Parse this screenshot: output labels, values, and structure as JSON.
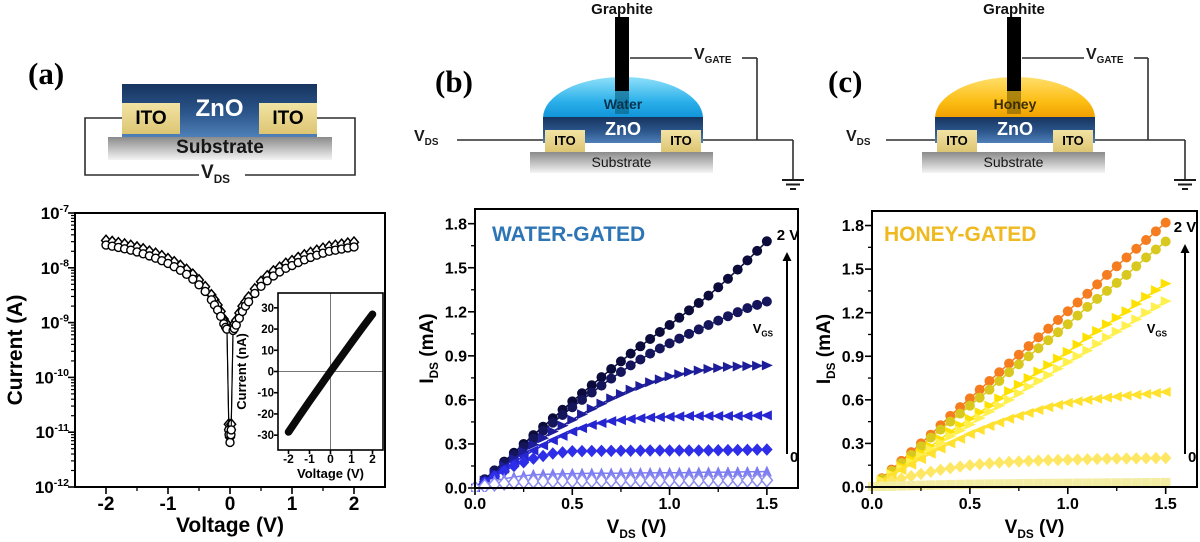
{
  "panels": {
    "a": {
      "label": "(a)",
      "schematic": {
        "zno": "ZnO",
        "ito_left": "ITO",
        "ito_right": "ITO",
        "substrate": "Substrate",
        "vds": "V_{DS}"
      }
    },
    "b": {
      "label": "(b)",
      "schematic": {
        "graphite": "Graphite",
        "liquid": "Water",
        "zno": "ZnO",
        "ito_left": "ITO",
        "ito_right": "ITO",
        "substrate": "Substrate",
        "vds": "V_{DS}",
        "vgate": "V_{GATE}"
      }
    },
    "c": {
      "label": "(c)",
      "schematic": {
        "graphite": "Graphite",
        "liquid": "Honey",
        "zno": "ZnO",
        "ito_left": "ITO",
        "ito_right": "ITO",
        "substrate": "Substrate",
        "vds": "V_{DS}",
        "vgate": "V_{GATE}"
      }
    }
  },
  "colors": {
    "water_title": "#2e75b6",
    "honey_title": "#efb920",
    "water_drop_top": "#8ee0fa",
    "water_drop": "#2cb0ea",
    "water_drop_deep": "#0f93d8",
    "honey_drop_top": "#ffdf6b",
    "honey_drop": "#fcbd13",
    "honey_drop_deep": "#ee9f00",
    "ito_top": "#f2e3a4",
    "ito_bottom": "#ddc572",
    "zno_top": "#16345f",
    "zno_mid": "#2c568c",
    "zno_bottom": "#4f80b8",
    "substrate_top": "#8a8a8a",
    "substrate_bottom": "#f4f4f4",
    "wire": "#2f2f2f"
  },
  "chart_data": [
    {
      "id": "iv_curve",
      "type": "scatter",
      "xlabel": "Voltage (V)",
      "ylabel": "Current (A)",
      "yscale": "log",
      "xlim": [
        -2.5,
        2.5
      ],
      "ylim_log": [
        -12,
        -7
      ],
      "xticks": {
        "values": [
          -2,
          -1,
          0,
          1,
          2
        ],
        "labels": [
          "-2",
          "-1",
          "0",
          "1",
          "2"
        ]
      },
      "yticks": {
        "values": [
          1e-07,
          1e-08,
          1e-09,
          1e-10,
          1e-11,
          1e-12
        ],
        "labels": [
          "10^{-7}",
          "10^{-8}",
          "10^{-9}",
          "10^{-10}",
          "10^{-11}",
          "10^{-12}"
        ]
      },
      "series": [
        {
          "name": "sweep-diamonds",
          "marker": "diamond-open",
          "color": "#000000",
          "points": [
            [
              -2,
              3.15e-08
            ],
            [
              -1.9,
              3e-08
            ],
            [
              -1.8,
              2.85e-08
            ],
            [
              -1.7,
              2.7e-08
            ],
            [
              -1.6,
              2.55e-08
            ],
            [
              -1.5,
              2.38e-08
            ],
            [
              -1.4,
              2.2e-08
            ],
            [
              -1.3,
              2e-08
            ],
            [
              -1.2,
              1.83e-08
            ],
            [
              -1.1,
              1.65e-08
            ],
            [
              -1,
              1.46e-08
            ],
            [
              -0.9,
              1.28e-08
            ],
            [
              -0.8,
              1.1e-08
            ],
            [
              -0.7,
              9.3e-09
            ],
            [
              -0.6,
              7.6e-09
            ],
            [
              -0.5,
              6e-09
            ],
            [
              -0.4,
              4.5e-09
            ],
            [
              -0.3,
              3.2e-09
            ],
            [
              -0.25,
              2.6e-09
            ],
            [
              -0.2,
              2.1e-09
            ],
            [
              -0.15,
              1.6e-09
            ],
            [
              -0.1,
              1.16e-09
            ],
            [
              -0.07,
              1e-09
            ],
            [
              -0.05,
              9.3e-10
            ],
            [
              -0.02,
              1.4e-11
            ],
            [
              -0.015,
              1.1e-11
            ],
            [
              0,
              8e-12
            ],
            [
              0.015,
              1.1e-11
            ],
            [
              0.02,
              1.4e-11
            ],
            [
              0.05,
              8.8e-10
            ],
            [
              0.07,
              9.5e-10
            ],
            [
              0.1,
              1.1e-09
            ],
            [
              0.15,
              1.5e-09
            ],
            [
              0.2,
              2e-09
            ],
            [
              0.25,
              2.4e-09
            ],
            [
              0.3,
              2.9e-09
            ],
            [
              0.4,
              4.1e-09
            ],
            [
              0.5,
              5.6e-09
            ],
            [
              0.6,
              7.1e-09
            ],
            [
              0.7,
              8.7e-09
            ],
            [
              0.8,
              1.02e-08
            ],
            [
              0.9,
              1.2e-08
            ],
            [
              1,
              1.34e-08
            ],
            [
              1.1,
              1.53e-08
            ],
            [
              1.2,
              1.71e-08
            ],
            [
              1.3,
              1.89e-08
            ],
            [
              1.4,
              2.07e-08
            ],
            [
              1.5,
              2.26e-08
            ],
            [
              1.6,
              2.44e-08
            ],
            [
              1.7,
              2.56e-08
            ],
            [
              1.8,
              2.68e-08
            ],
            [
              1.9,
              2.8e-08
            ],
            [
              2,
              2.93e-08
            ]
          ]
        },
        {
          "name": "sweep-circles",
          "marker": "circle-open",
          "color": "#000000",
          "points": [
            [
              -2,
              2.6e-08
            ],
            [
              -1.9,
              2.48e-08
            ],
            [
              -1.8,
              2.35e-08
            ],
            [
              -1.7,
              2.22e-08
            ],
            [
              -1.6,
              2.1e-08
            ],
            [
              -1.5,
              1.95e-08
            ],
            [
              -1.4,
              1.8e-08
            ],
            [
              -1.3,
              1.65e-08
            ],
            [
              -1.2,
              1.5e-08
            ],
            [
              -1.1,
              1.35e-08
            ],
            [
              -1,
              1.2e-08
            ],
            [
              -0.9,
              1.05e-08
            ],
            [
              -0.8,
              9e-09
            ],
            [
              -0.7,
              7.6e-09
            ],
            [
              -0.6,
              6.2e-09
            ],
            [
              -0.5,
              4.9e-09
            ],
            [
              -0.4,
              3.7e-09
            ],
            [
              -0.3,
              2.6e-09
            ],
            [
              -0.25,
              2.1e-09
            ],
            [
              -0.2,
              1.7e-09
            ],
            [
              -0.15,
              1.3e-09
            ],
            [
              -0.1,
              9.5e-10
            ],
            [
              -0.07,
              8.2e-10
            ],
            [
              -0.05,
              7.6e-10
            ],
            [
              -0.02,
              1.1e-11
            ],
            [
              -0.015,
              9e-12
            ],
            [
              0,
              6.5e-12
            ],
            [
              0.015,
              9e-12
            ],
            [
              0.02,
              1.1e-11
            ],
            [
              0.05,
              7.2e-10
            ],
            [
              0.07,
              7.8e-10
            ],
            [
              0.1,
              9e-10
            ],
            [
              0.15,
              1.2e-09
            ],
            [
              0.2,
              1.6e-09
            ],
            [
              0.25,
              2e-09
            ],
            [
              0.3,
              2.4e-09
            ],
            [
              0.4,
              3.4e-09
            ],
            [
              0.5,
              4.6e-09
            ],
            [
              0.6,
              5.8e-09
            ],
            [
              0.7,
              7.1e-09
            ],
            [
              0.8,
              8.4e-09
            ],
            [
              0.9,
              9.8e-09
            ],
            [
              1,
              1.1e-08
            ],
            [
              1.1,
              1.25e-08
            ],
            [
              1.2,
              1.4e-08
            ],
            [
              1.3,
              1.55e-08
            ],
            [
              1.4,
              1.7e-08
            ],
            [
              1.5,
              1.85e-08
            ],
            [
              1.6,
              2e-08
            ],
            [
              1.7,
              2.1e-08
            ],
            [
              1.8,
              2.2e-08
            ],
            [
              1.9,
              2.3e-08
            ],
            [
              2,
              2.4e-08
            ]
          ]
        }
      ]
    },
    {
      "id": "iv_inset",
      "type": "line",
      "xlabel": "Voltage (V)",
      "ylabel": "Current (nA)",
      "xlim": [
        -2.5,
        2.5
      ],
      "ylim": [
        -37,
        37
      ],
      "xticks": {
        "values": [
          -2,
          -1,
          0,
          1,
          2
        ],
        "labels": [
          "-2",
          "-1",
          "0",
          "1",
          "2"
        ]
      },
      "yticks": {
        "values": [
          30,
          20,
          10,
          0,
          -10,
          -20,
          -30
        ],
        "labels": [
          "30",
          "20",
          "10",
          "0",
          "-10",
          "-20",
          "-30"
        ]
      },
      "series": [
        {
          "name": "linear-iv",
          "marker": "none",
          "color": "#0a0a0a",
          "lw": 7.5,
          "points": [
            [
              -2,
              -28.5
            ],
            [
              -1.5,
              -21.2
            ],
            [
              -1,
              -14
            ],
            [
              -0.5,
              -7
            ],
            [
              0,
              0
            ],
            [
              0.5,
              6.8
            ],
            [
              1,
              13.6
            ],
            [
              1.5,
              20.4
            ],
            [
              2,
              27
            ]
          ]
        }
      ]
    },
    {
      "id": "water_output",
      "type": "line",
      "title": "WATER-GATED",
      "title_color": "#2e75b6",
      "xlabel": "V_{DS} (V)",
      "ylabel": "I_{DS} (mA)",
      "xlim": [
        0,
        1.66
      ],
      "ylim": [
        0,
        1.9
      ],
      "xticks": {
        "values": [
          0,
          0.5,
          1,
          1.5
        ],
        "labels": [
          "0.0",
          "0.5",
          "1.0",
          "1.5"
        ]
      },
      "yticks": {
        "values": [
          0,
          0.3,
          0.6,
          0.9,
          1.2,
          1.5,
          1.8
        ],
        "labels": [
          "0.0",
          "0.3",
          "0.6",
          "0.9",
          "1.2",
          "1.5",
          "1.8"
        ]
      },
      "x": [
        0,
        0.1,
        0.2,
        0.3,
        0.4,
        0.5,
        0.6,
        0.7,
        0.8,
        0.9,
        1.0,
        1.1,
        1.2,
        1.3,
        1.4,
        1.5
      ],
      "annotations": {
        "top_label": "2 V",
        "bottom_label": "0",
        "arrow_label": "V_{GS}"
      },
      "series": [
        {
          "name": "vgs-step-7-2V",
          "marker": "circle",
          "color": "#0b0b3c",
          "values": [
            0,
            0.12,
            0.24,
            0.36,
            0.475,
            0.59,
            0.7,
            0.81,
            0.915,
            1.015,
            1.11,
            1.21,
            1.31,
            1.425,
            1.55,
            1.68
          ]
        },
        {
          "name": "vgs-step-6",
          "marker": "circle",
          "color": "#15155c",
          "values": [
            0,
            0.115,
            0.225,
            0.335,
            0.445,
            0.55,
            0.65,
            0.745,
            0.835,
            0.915,
            0.985,
            1.05,
            1.11,
            1.17,
            1.225,
            1.27
          ]
        },
        {
          "name": "vgs-step-5",
          "marker": "tri-right",
          "color": "#1d1d99",
          "values": [
            0,
            0.1,
            0.2,
            0.295,
            0.385,
            0.465,
            0.54,
            0.61,
            0.67,
            0.72,
            0.76,
            0.79,
            0.81,
            0.825,
            0.83,
            0.835
          ]
        },
        {
          "name": "vgs-step-4",
          "marker": "tri-left",
          "color": "#2525d1",
          "values": [
            0,
            0.09,
            0.175,
            0.255,
            0.325,
            0.385,
            0.43,
            0.455,
            0.47,
            0.48,
            0.485,
            0.49,
            0.49,
            0.49,
            0.49,
            0.495
          ]
        },
        {
          "name": "vgs-step-3",
          "marker": "diamond",
          "color": "#2e2ee8",
          "values": [
            0,
            0.08,
            0.15,
            0.2,
            0.235,
            0.25,
            0.252,
            0.253,
            0.254,
            0.255,
            0.255,
            0.255,
            0.256,
            0.258,
            0.26,
            0.262
          ]
        },
        {
          "name": "vgs-step-2",
          "marker": "tri-up",
          "color": "#7d7df2",
          "values": [
            0,
            0.05,
            0.075,
            0.09,
            0.095,
            0.098,
            0.1,
            0.1,
            0.102,
            0.103,
            0.104,
            0.105,
            0.107,
            0.108,
            0.11,
            0.112
          ]
        },
        {
          "name": "vgs-step-1-0V",
          "marker": "diamond-open",
          "color": "#8c8cf0",
          "values": [
            0,
            0.025,
            0.038,
            0.044,
            0.047,
            0.048,
            0.049,
            0.05,
            0.05,
            0.05,
            0.05,
            0.05,
            0.051,
            0.051,
            0.052,
            0.053
          ]
        }
      ]
    },
    {
      "id": "honey_output",
      "type": "line",
      "title": "HONEY-GATED",
      "title_color": "#efb920",
      "xlabel": "V_{DS} (V)",
      "ylabel": "I_{DS} (mA)",
      "xlim": [
        0,
        1.66
      ],
      "ylim": [
        0,
        1.9
      ],
      "xticks": {
        "values": [
          0,
          0.5,
          1,
          1.5
        ],
        "labels": [
          "0.0",
          "0.5",
          "1.0",
          "1.5"
        ]
      },
      "yticks": {
        "values": [
          0,
          0.3,
          0.6,
          0.9,
          1.2,
          1.5,
          1.8
        ],
        "labels": [
          "0.0",
          "0.3",
          "0.6",
          "0.9",
          "1.2",
          "1.5",
          "1.8"
        ]
      },
      "x": [
        0,
        0.1,
        0.2,
        0.3,
        0.4,
        0.5,
        0.6,
        0.7,
        0.8,
        0.9,
        1.0,
        1.1,
        1.2,
        1.3,
        1.4,
        1.5
      ],
      "annotations": {
        "top_label": "2 V",
        "bottom_label": "0",
        "arrow_label": "V_{GS}"
      },
      "series": [
        {
          "name": "vgs-step-7-2V",
          "marker": "circle",
          "color": "#f57d20",
          "values": [
            0,
            0.12,
            0.24,
            0.36,
            0.49,
            0.61,
            0.73,
            0.85,
            0.97,
            1.09,
            1.21,
            1.33,
            1.46,
            1.58,
            1.7,
            1.82
          ]
        },
        {
          "name": "vgs-step-6",
          "marker": "circle",
          "color": "#d9c91e",
          "values": [
            0,
            0.11,
            0.22,
            0.34,
            0.45,
            0.56,
            0.67,
            0.79,
            0.9,
            1.01,
            1.12,
            1.24,
            1.35,
            1.46,
            1.58,
            1.69
          ]
        },
        {
          "name": "vgs-step-5",
          "marker": "tri-right",
          "color": "#ffe100",
          "values": [
            0,
            0.09,
            0.19,
            0.28,
            0.38,
            0.47,
            0.56,
            0.66,
            0.75,
            0.84,
            0.93,
            1.03,
            1.12,
            1.21,
            1.31,
            1.4
          ]
        },
        {
          "name": "vgs-step-4",
          "marker": "tri-right",
          "color": "#fff04d",
          "values": [
            0,
            0.085,
            0.17,
            0.26,
            0.35,
            0.43,
            0.52,
            0.6,
            0.69,
            0.77,
            0.86,
            0.94,
            1.03,
            1.11,
            1.2,
            1.28
          ]
        },
        {
          "name": "vgs-step-3",
          "marker": "tri-left",
          "color": "#ffe12e",
          "values": [
            0,
            0.08,
            0.155,
            0.23,
            0.3,
            0.365,
            0.42,
            0.47,
            0.51,
            0.55,
            0.58,
            0.6,
            0.615,
            0.63,
            0.64,
            0.655
          ]
        },
        {
          "name": "vgs-step-2",
          "marker": "diamond",
          "color": "#ffe766",
          "values": [
            0,
            0.04,
            0.075,
            0.105,
            0.13,
            0.15,
            0.163,
            0.172,
            0.179,
            0.184,
            0.188,
            0.191,
            0.194,
            0.196,
            0.198,
            0.2
          ]
        },
        {
          "name": "vgs-step-1-0V",
          "marker": "square",
          "color": "#f2eda2",
          "values": [
            0,
            0.006,
            0.01,
            0.013,
            0.016,
            0.018,
            0.02,
            0.021,
            0.023,
            0.024,
            0.025,
            0.026,
            0.027,
            0.028,
            0.029,
            0.03
          ]
        }
      ]
    }
  ]
}
